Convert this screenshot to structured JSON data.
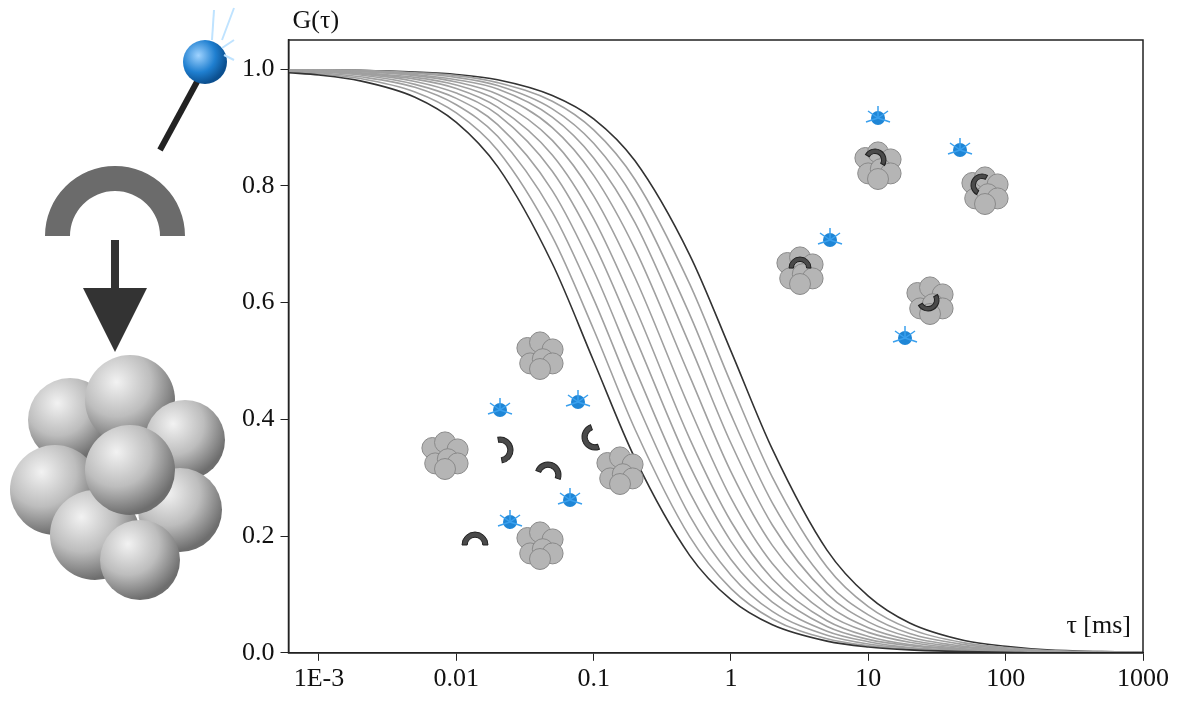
{
  "chart_data": {
    "type": "line",
    "xlabel": "τ [ms]",
    "ylabel": "G(τ)",
    "log": "x",
    "grid": false,
    "xlim": [
      0.0006,
      1000
    ],
    "ylim": [
      0,
      1.05
    ],
    "xticks": [
      {
        "value": 0.001,
        "label": "1E-3"
      },
      0.01,
      0.1,
      1,
      10,
      100,
      1000
    ],
    "yticks": [
      {
        "value": 0,
        "label": "0.0"
      },
      {
        "value": 0.2,
        "label": "0.2"
      },
      {
        "value": 0.4,
        "label": "0.4"
      },
      {
        "value": 0.6,
        "label": "0.6"
      },
      {
        "value": 0.8,
        "label": "0.8"
      },
      {
        "value": 1,
        "label": "1.0"
      }
    ],
    "x": [
      0.0006,
      0.001,
      0.002,
      0.005,
      0.01,
      0.02,
      0.05,
      0.1,
      0.2,
      0.5,
      1,
      2,
      5,
      10,
      20,
      50,
      100,
      200,
      500,
      1000
    ],
    "series": [
      {
        "color": "#333333",
        "values": [
          0.994,
          0.99,
          0.98,
          0.952,
          0.909,
          0.833,
          0.667,
          0.5,
          0.333,
          0.167,
          0.091,
          0.048,
          0.02,
          0.01,
          0.005,
          0.002,
          0.001,
          0,
          0,
          0
        ]
      },
      {
        "color": "#a0a0a0",
        "values": [
          0.995,
          0.992,
          0.984,
          0.961,
          0.925,
          0.861,
          0.713,
          0.554,
          0.383,
          0.199,
          0.11,
          0.058,
          0.024,
          0.012,
          0.006,
          0.002,
          0.001,
          0,
          0,
          0
        ]
      },
      {
        "color": "#a0a0a0",
        "values": [
          0.996,
          0.994,
          0.987,
          0.969,
          0.939,
          0.885,
          0.755,
          0.606,
          0.435,
          0.235,
          0.133,
          0.071,
          0.03,
          0.015,
          0.008,
          0.003,
          0.002,
          0.001,
          0,
          0
        ]
      },
      {
        "color": "#a0a0a0",
        "values": [
          0.997,
          0.995,
          0.99,
          0.974,
          0.95,
          0.905,
          0.792,
          0.655,
          0.487,
          0.275,
          0.16,
          0.087,
          0.037,
          0.019,
          0.009,
          0.004,
          0.002,
          0.001,
          0,
          0
        ]
      },
      {
        "color": "#a0a0a0",
        "values": [
          0.997,
          0.996,
          0.992,
          0.979,
          0.959,
          0.922,
          0.825,
          0.702,
          0.541,
          0.321,
          0.191,
          0.106,
          0.045,
          0.023,
          0.012,
          0.005,
          0.002,
          0.001,
          0,
          0
        ]
      },
      {
        "color": "#a0a0a0",
        "values": [
          0.998,
          0.997,
          0.993,
          0.983,
          0.967,
          0.935,
          0.853,
          0.744,
          0.592,
          0.367,
          0.225,
          0.127,
          0.055,
          0.028,
          0.014,
          0.006,
          0.003,
          0.001,
          0.001,
          0
        ]
      },
      {
        "color": "#a0a0a0",
        "values": [
          0.998,
          0.997,
          0.994,
          0.986,
          0.973,
          0.947,
          0.878,
          0.783,
          0.643,
          0.419,
          0.265,
          0.153,
          0.067,
          0.035,
          0.018,
          0.007,
          0.004,
          0.002,
          0.001,
          0
        ]
      },
      {
        "color": "#a0a0a0",
        "values": [
          0.999,
          0.998,
          0.996,
          0.989,
          0.978,
          0.957,
          0.9,
          0.818,
          0.692,
          0.474,
          0.31,
          0.184,
          0.083,
          0.043,
          0.022,
          0.009,
          0.004,
          0.002,
          0.001,
          0
        ]
      },
      {
        "color": "#a0a0a0",
        "values": [
          0.999,
          0.998,
          0.996,
          0.991,
          0.982,
          0.966,
          0.918,
          0.848,
          0.737,
          0.528,
          0.359,
          0.219,
          0.101,
          0.053,
          0.027,
          0.011,
          0.006,
          0.003,
          0.001,
          0.001
        ]
      },
      {
        "color": "#a0a0a0",
        "values": [
          0.999,
          0.999,
          0.997,
          0.993,
          0.986,
          0.972,
          0.932,
          0.873,
          0.775,
          0.58,
          0.408,
          0.257,
          0.121,
          0.065,
          0.033,
          0.014,
          0.007,
          0.003,
          0.001,
          0.001
        ]
      },
      {
        "color": "#a0a0a0",
        "values": [
          0.999,
          0.999,
          0.998,
          0.994,
          0.989,
          0.977,
          0.945,
          0.896,
          0.811,
          0.632,
          0.462,
          0.301,
          0.147,
          0.079,
          0.041,
          0.017,
          0.009,
          0.004,
          0.002,
          0.001
        ]
      },
      {
        "color": "#333333",
        "values": [
          0.999,
          0.999,
          0.998,
          0.995,
          0.991,
          0.982,
          0.955,
          0.915,
          0.843,
          0.682,
          0.517,
          0.349,
          0.176,
          0.097,
          0.051,
          0.021,
          0.011,
          0.005,
          0.002,
          0.001
        ]
      }
    ]
  }
}
